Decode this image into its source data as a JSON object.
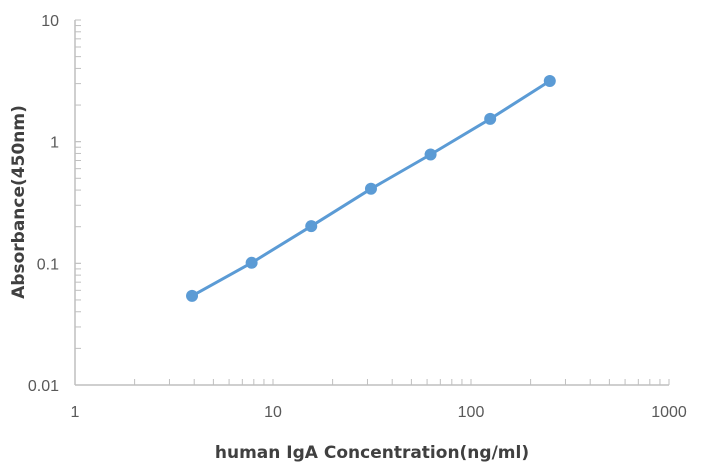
{
  "chart_data": {
    "type": "line",
    "title": "",
    "xlabel": "human  IgA Concentration(ng/ml)",
    "ylabel": "Absorbance(450nm)",
    "xscale": "log",
    "yscale": "log",
    "xlim": [
      1,
      1000
    ],
    "ylim": [
      0.01,
      10
    ],
    "x_ticks": [
      "1",
      "10",
      "100",
      "1000"
    ],
    "y_ticks": [
      "0.01",
      "0.1",
      "1",
      "10"
    ],
    "grid": false,
    "legend": null,
    "series": [
      {
        "name": "human IgA",
        "color": "#5B9BD5",
        "marker": "circle",
        "x": [
          3.9,
          7.8,
          15.6,
          31.25,
          62.5,
          125,
          250
        ],
        "values": [
          0.054,
          0.101,
          0.202,
          0.41,
          0.785,
          1.54,
          3.15
        ]
      }
    ]
  },
  "colors": {
    "series": "#5B9BD5",
    "axis": "#BFBFBF",
    "tick_text": "#595959",
    "title_text": "#404040"
  }
}
